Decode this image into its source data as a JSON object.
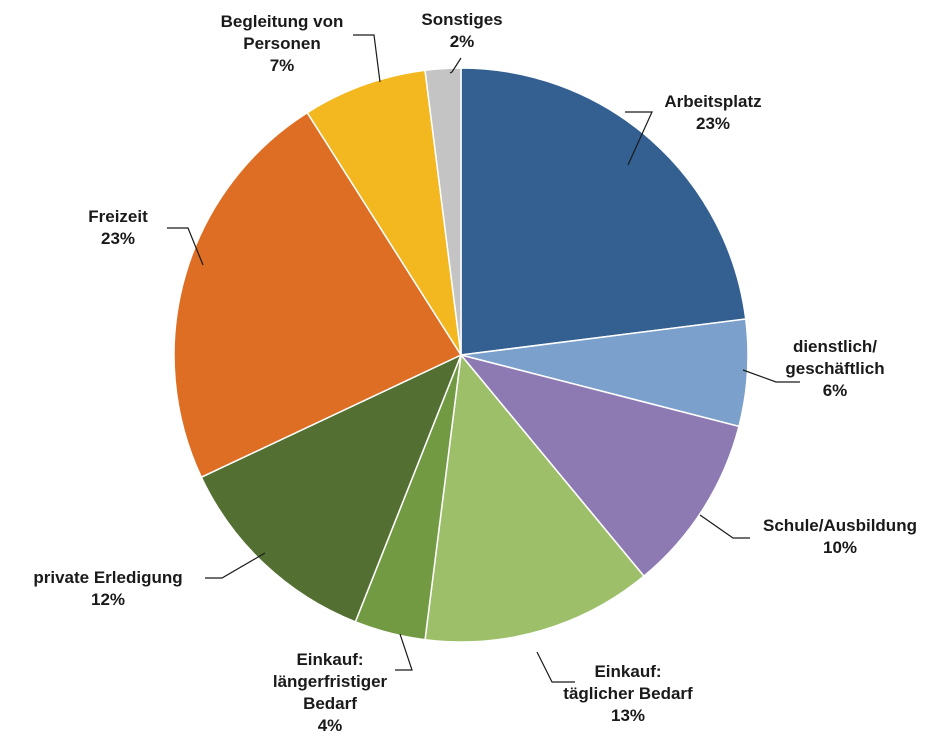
{
  "chart_data": {
    "type": "pie",
    "title": "",
    "start_angle_deg": 0,
    "direction": "clockwise",
    "slices": [
      {
        "label_lines": [
          "Arbeitsplatz"
        ],
        "value_text": "23%",
        "value": 23,
        "color": "#335f91"
      },
      {
        "label_lines": [
          "dienstlich/",
          "geschäftlich"
        ],
        "value_text": "6%",
        "value": 6,
        "color": "#7ba0cb"
      },
      {
        "label_lines": [
          "Schule/Ausbildung"
        ],
        "value_text": "10%",
        "value": 10,
        "color": "#8e7ab3"
      },
      {
        "label_lines": [
          "Einkauf:",
          "täglicher Bedarf"
        ],
        "value_text": "13%",
        "value": 13,
        "color": "#9dbf6a"
      },
      {
        "label_lines": [
          "Einkauf:",
          "längerfristiger",
          "Bedarf"
        ],
        "value_text": "4%",
        "value": 4,
        "color": "#729a43"
      },
      {
        "label_lines": [
          "private Erledigung"
        ],
        "value_text": "12%",
        "value": 12,
        "color": "#537032"
      },
      {
        "label_lines": [
          "Freizeit"
        ],
        "value_text": "23%",
        "value": 23,
        "color": "#dd6e23"
      },
      {
        "label_lines": [
          "Begleitung von",
          "Personen"
        ],
        "value_text": "7%",
        "value": 7,
        "color": "#f3b820"
      },
      {
        "label_lines": [
          "Sonstiges"
        ],
        "value_text": "2%",
        "value": 2,
        "color": "#c4c4c4"
      }
    ]
  }
}
